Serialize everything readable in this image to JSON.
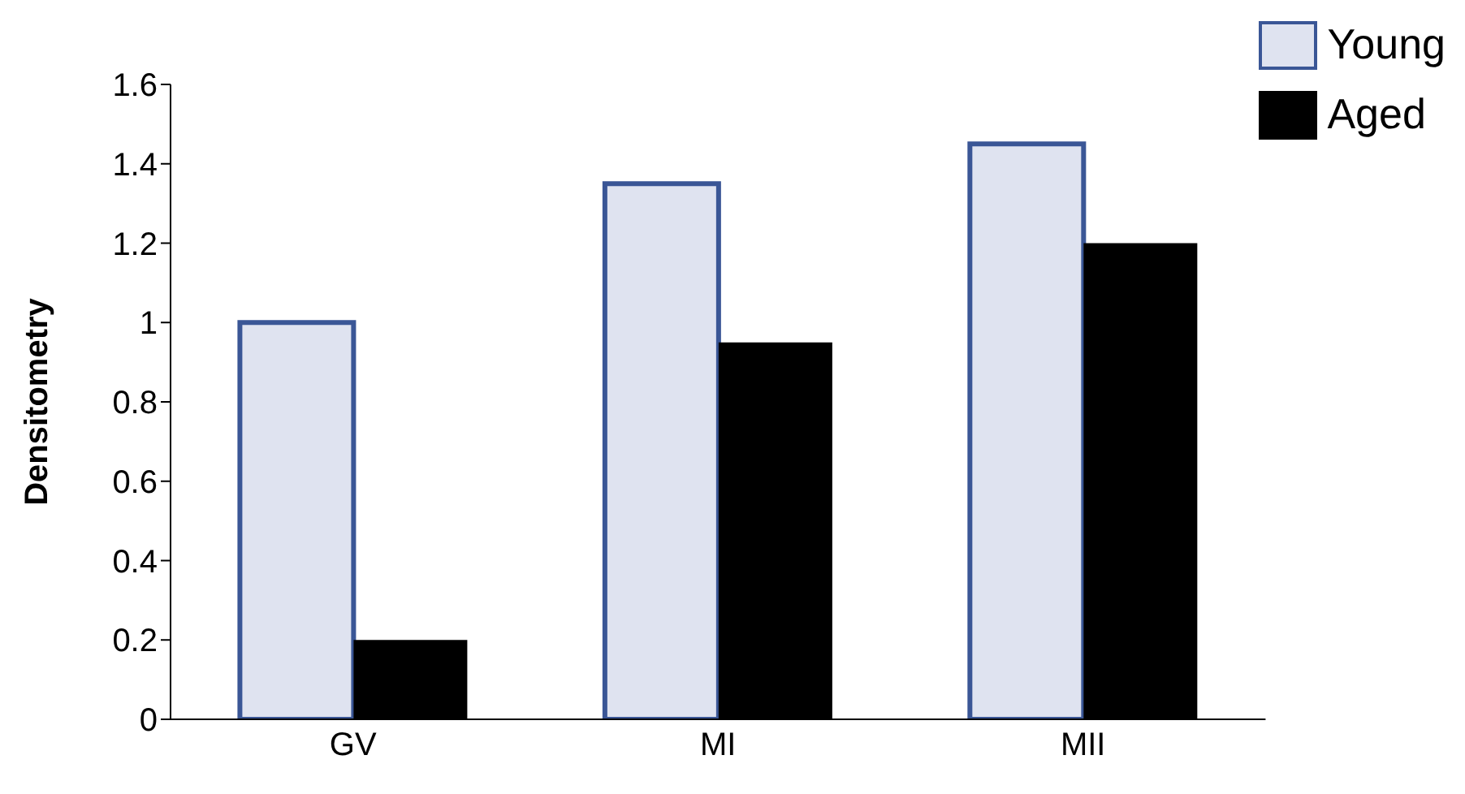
{
  "chart_data": {
    "type": "bar",
    "ylabel": "Densitometry",
    "categories": [
      "GV",
      "MI",
      "MII"
    ],
    "series": [
      {
        "name": "Young",
        "color": "#dfe3f0",
        "values": [
          1.0,
          1.35,
          1.45
        ]
      },
      {
        "name": "Aged",
        "color": "#000000",
        "values": [
          0.2,
          0.95,
          1.2
        ]
      }
    ],
    "ylim": [
      0,
      1.6
    ],
    "yticks": [
      0,
      0.2,
      0.4,
      0.6,
      0.8,
      1,
      1.2,
      1.4,
      1.6
    ],
    "grid": false,
    "legend": "top right"
  }
}
